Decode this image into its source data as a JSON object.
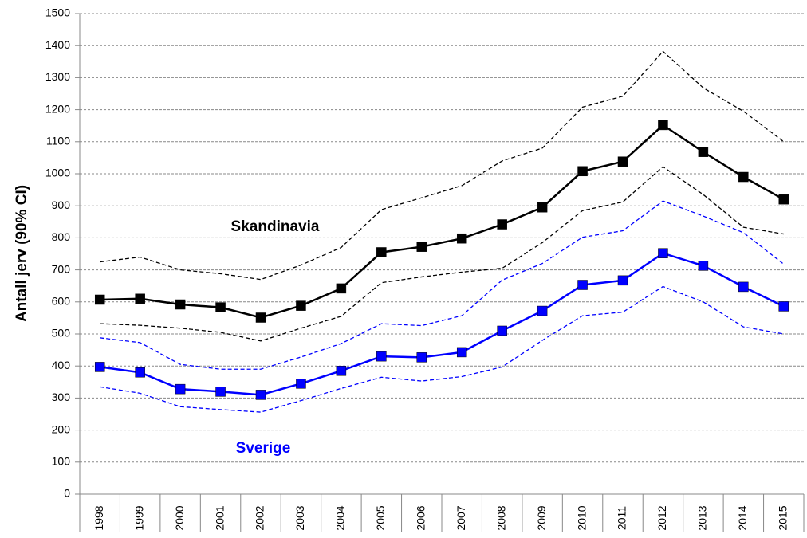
{
  "chart_data": {
    "type": "line",
    "y_label": "Antall jerv (90% CI)",
    "categories": [
      "1998",
      "1999",
      "2000",
      "2001",
      "2002",
      "2003",
      "2004",
      "2005",
      "2006",
      "2007",
      "2008",
      "2009",
      "2010",
      "2011",
      "2012",
      "2013",
      "2014",
      "2015"
    ],
    "ylim": [
      0,
      1500
    ],
    "yticks": [
      0,
      100,
      200,
      300,
      400,
      500,
      600,
      700,
      800,
      900,
      1000,
      1100,
      1200,
      1300,
      1400,
      1500
    ],
    "grid": true,
    "series": [
      {
        "values": [
          725,
          740,
          700,
          688,
          670,
          715,
          770,
          888,
          925,
          963,
          1040,
          1080,
          1208,
          1242,
          1382,
          1268,
          1195,
          1100
        ],
        "color": "#000000",
        "dashed": true
      },
      {
        "name": "Skandinavia",
        "values": [
          607,
          610,
          592,
          583,
          551,
          588,
          642,
          755,
          772,
          798,
          842,
          895,
          1008,
          1038,
          1152,
          1068,
          990,
          920
        ],
        "color": "#000000",
        "marker": "square"
      },
      {
        "values": [
          532,
          527,
          518,
          505,
          478,
          518,
          555,
          660,
          678,
          693,
          705,
          785,
          885,
          912,
          1022,
          935,
          833,
          812
        ],
        "color": "#000000",
        "dashed": true
      },
      {
        "values": [
          488,
          473,
          405,
          390,
          390,
          428,
          470,
          532,
          526,
          557,
          668,
          720,
          802,
          822,
          915,
          868,
          816,
          718
        ],
        "color": "#0000ff",
        "dashed": true
      },
      {
        "name": "Sverige",
        "values": [
          397,
          380,
          328,
          320,
          310,
          345,
          385,
          430,
          427,
          443,
          510,
          572,
          653,
          667,
          752,
          713,
          647,
          586
        ],
        "color": "#0000ff",
        "marker": "square"
      },
      {
        "values": [
          335,
          315,
          273,
          264,
          256,
          292,
          330,
          365,
          353,
          367,
          397,
          480,
          557,
          568,
          648,
          600,
          522,
          500
        ],
        "color": "#0000ff",
        "dashed": true
      }
    ]
  }
}
